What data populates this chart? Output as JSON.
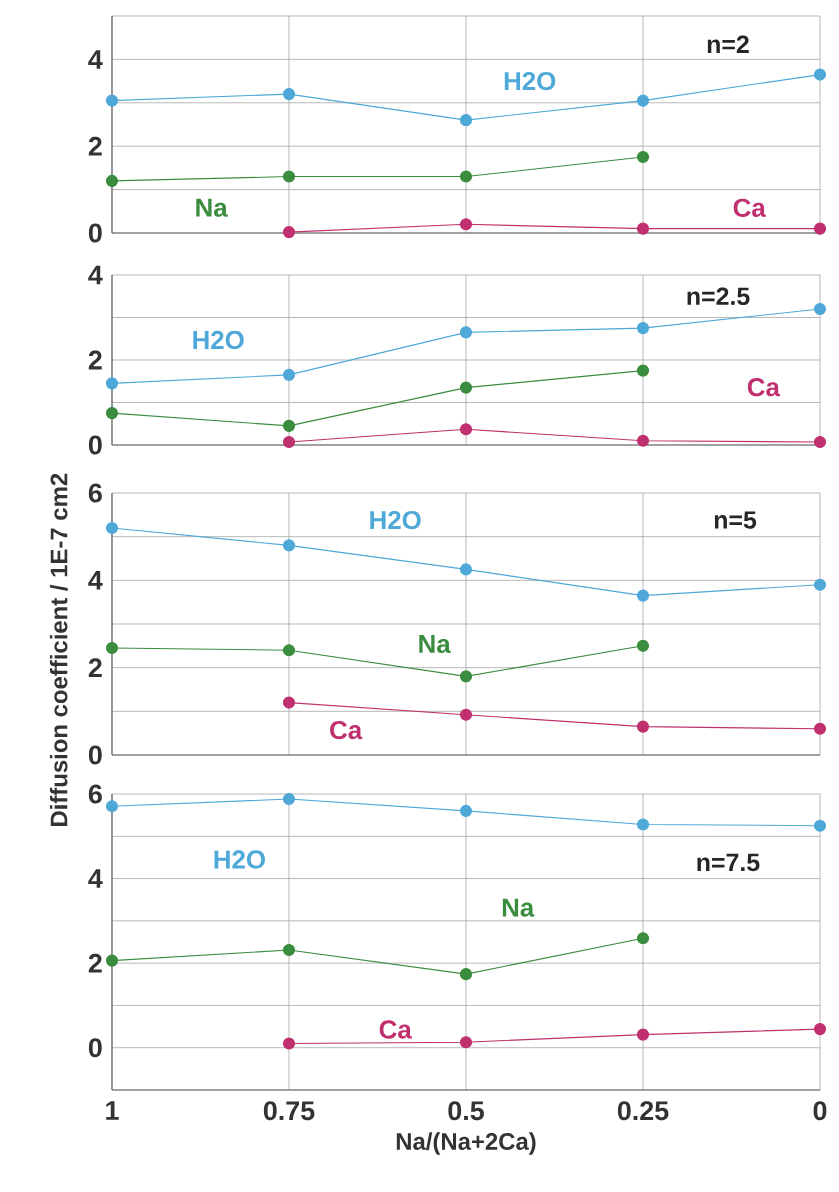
{
  "chart_data": [
    {
      "type": "line",
      "x": [
        1,
        0.75,
        0.5,
        0.25,
        0
      ],
      "xlim": [
        1,
        0
      ],
      "xticks": [
        {
          "value": 1,
          "label": null
        },
        {
          "value": 0.75,
          "label": null
        },
        {
          "value": 0.5,
          "label": null
        },
        {
          "value": 0.25,
          "label": null
        },
        {
          "value": 0,
          "label": null
        }
      ],
      "ylim": [
        0,
        5
      ],
      "yticks": [
        0,
        {
          "value": 1,
          "label": null
        },
        2,
        {
          "value": 3,
          "label": null
        },
        4,
        {
          "value": 5,
          "label": null
        }
      ],
      "grid": true,
      "marker": "circle",
      "tick_labels": "y",
      "annotations": [
        "n=2"
      ],
      "series": [
        {
          "name": "H2O",
          "color": "#4ea8d8",
          "values": [
            3.05,
            3.2,
            2.6,
            3.05,
            3.65
          ]
        },
        {
          "name": "Na",
          "color": "#3a8c3e",
          "values": [
            1.2,
            1.3,
            1.3,
            1.75,
            null
          ]
        },
        {
          "name": "Ca",
          "color": "#c0306e",
          "values": [
            null,
            0.02,
            0.2,
            0.1,
            0.1
          ]
        }
      ]
    },
    {
      "type": "line",
      "x": [
        1,
        0.75,
        0.5,
        0.25,
        0
      ],
      "xlim": [
        1,
        0
      ],
      "xticks": [
        {
          "value": 1,
          "label": null
        },
        {
          "value": 0.75,
          "label": null
        },
        {
          "value": 0.5,
          "label": null
        },
        {
          "value": 0.25,
          "label": null
        },
        {
          "value": 0,
          "label": null
        }
      ],
      "ylim": [
        0,
        4
      ],
      "yticks": [
        0,
        {
          "value": 1,
          "label": null
        },
        2,
        {
          "value": 3,
          "label": null
        },
        4
      ],
      "grid": true,
      "marker": "circle",
      "tick_labels": "y",
      "annotations": [
        "n=2.5"
      ],
      "series": [
        {
          "name": "H2O",
          "color": "#4ea8d8",
          "values": [
            1.45,
            1.65,
            2.65,
            2.75,
            3.2
          ]
        },
        {
          "color": "#3a8c3e",
          "values": [
            0.75,
            0.45,
            1.35,
            1.75,
            null
          ]
        },
        {
          "name": "Ca",
          "color": "#c0306e",
          "values": [
            null,
            0.07,
            0.37,
            0.1,
            0.07
          ]
        }
      ]
    },
    {
      "type": "line",
      "x": [
        1,
        0.75,
        0.5,
        0.25,
        0
      ],
      "xlim": [
        1,
        0
      ],
      "xticks": [
        {
          "value": 1,
          "label": null
        },
        {
          "value": 0.75,
          "label": null
        },
        {
          "value": 0.5,
          "label": null
        },
        {
          "value": 0.25,
          "label": null
        },
        {
          "value": 0,
          "label": null
        }
      ],
      "ylim": [
        0,
        6
      ],
      "yticks": [
        0,
        {
          "value": 1,
          "label": null
        },
        2,
        {
          "value": 3,
          "label": null
        },
        4,
        {
          "value": 5,
          "label": null
        },
        6
      ],
      "grid": true,
      "marker": "circle",
      "tick_labels": "y",
      "ylabel": "Diffusion coefficient / 1E-7 cm2",
      "annotations": [
        "n=5"
      ],
      "series": [
        {
          "name": "H2O",
          "color": "#4ea8d8",
          "values": [
            5.2,
            4.8,
            4.25,
            3.65,
            3.9
          ]
        },
        {
          "name": "Na",
          "color": "#3a8c3e",
          "values": [
            2.45,
            2.4,
            1.8,
            2.5,
            null
          ]
        },
        {
          "name": "Ca",
          "color": "#c0306e",
          "values": [
            null,
            1.2,
            0.92,
            0.65,
            0.6
          ]
        }
      ]
    },
    {
      "type": "line",
      "x": [
        1,
        0.75,
        0.5,
        0.25,
        0
      ],
      "xlim": [
        1,
        0
      ],
      "xticks": [
        1,
        0.75,
        0.5,
        0.25,
        0
      ],
      "ylim": [
        -1,
        6
      ],
      "yticks": [
        {
          "value": -1,
          "label": null
        },
        0,
        {
          "value": 1,
          "label": null
        },
        2,
        {
          "value": 3,
          "label": null
        },
        4,
        {
          "value": 5,
          "label": null
        },
        6
      ],
      "grid": true,
      "marker": "circle",
      "xlabel": "Na/(Na+2Ca)",
      "annotations": [
        "n=7.5"
      ],
      "series": [
        {
          "name": "H2O",
          "color": "#4ea8d8",
          "values": [
            5.71,
            5.88,
            5.6,
            5.28,
            5.25
          ]
        },
        {
          "name": "Na",
          "color": "#3a8c3e",
          "values": [
            2.06,
            2.31,
            1.74,
            2.59,
            null
          ]
        },
        {
          "name": "Ca",
          "color": "#c0306e",
          "values": [
            null,
            0.1,
            0.13,
            0.31,
            0.44
          ]
        }
      ]
    }
  ]
}
